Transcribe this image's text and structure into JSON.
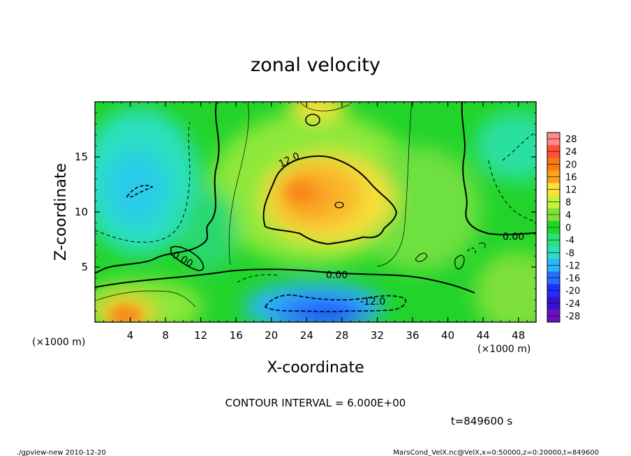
{
  "chart_data": {
    "type": "heatmap",
    "title": "zonal velocity",
    "xlabel": "X-coordinate",
    "ylabel": "Z-coordinate",
    "x_unit": "(×1000 m)",
    "y_unit": "(×1000 m)",
    "xlim": [
      0,
      50
    ],
    "ylim": [
      0,
      20
    ],
    "x_ticks": [
      4,
      8,
      12,
      16,
      20,
      24,
      28,
      32,
      36,
      40,
      44,
      48
    ],
    "y_ticks": [
      5,
      10,
      15
    ],
    "colorbar": {
      "labels": [
        28,
        24,
        20,
        16,
        12,
        8,
        4,
        0,
        -4,
        -8,
        -12,
        -16,
        -20,
        -24,
        -28
      ],
      "colors": [
        "#ff8a8a",
        "#ff4f33",
        "#f97a10",
        "#f9a21a",
        "#ffe03a",
        "#c6f23a",
        "#7ee03a",
        "#22d42a",
        "#2ae07a",
        "#2ae0c0",
        "#2ab4ff",
        "#2a6cff",
        "#1e2eff",
        "#3a10d0",
        "#6a10c0"
      ]
    },
    "contour_labels": [
      "12.0",
      "0.00",
      "0.00",
      "0.00",
      "-12.0",
      "0.00"
    ],
    "contour_interval_text": "CONTOUR INTERVAL = 6.000E+00",
    "time_text": "t=849600 s",
    "features": [
      {
        "name": "positive core",
        "x": 27,
        "z": 11,
        "value": 14
      },
      {
        "name": "negative core",
        "x": 26,
        "z": 1.2,
        "value": -16
      },
      {
        "name": "left cyan region",
        "x": 4,
        "z": 12,
        "value": -8
      },
      {
        "name": "lower-left warm patch",
        "x": 4,
        "z": 1,
        "value": 10
      },
      {
        "name": "top warm patch",
        "x": 24,
        "z": 19.5,
        "value": 10
      }
    ]
  },
  "footer": {
    "left": "./gpview-new   2010-12-20",
    "right": "MarsCond_VelX.nc@VelX,x=0:50000,z=0:20000,t=849600"
  }
}
